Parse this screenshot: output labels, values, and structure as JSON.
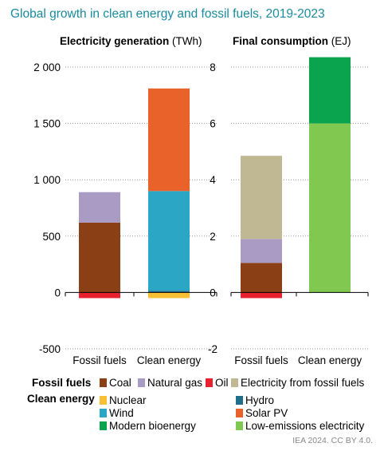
{
  "title": "Global growth in clean energy and fossil fuels, 2019-2023",
  "credit": "IEA 2024. CC BY 4.0.",
  "colors": {
    "Coal": "#8b3f14",
    "Natural gas": "#a99bc3",
    "Oil": "#e8212e",
    "Electricity from fossil fuels": "#c0b893",
    "Nuclear": "#fbbf36",
    "Hydro": "#1f6f88",
    "Wind": "#2ba6c4",
    "Solar PV": "#e8622a",
    "Modern bioenergy": "#0aa44e",
    "Low-emissions electricity": "#80c850",
    "title": "#1a8b9d"
  },
  "legend": {
    "fossil_heading": "Fossil fuels",
    "clean_heading": "Clean energy",
    "fossil_items": [
      "Coal",
      "Natural gas",
      "Oil",
      "Electricity from fossil fuels"
    ],
    "clean_items": [
      "Nuclear",
      "Hydro",
      "Wind",
      "Solar PV",
      "Modern bioenergy",
      "Low-emissions electricity"
    ]
  },
  "chart_data": [
    {
      "type": "bar",
      "stacked": true,
      "title": "Electricity generation",
      "unit": "(TWh)",
      "categories": [
        "Fossil fuels",
        "Clean energy"
      ],
      "ylim": [
        -500,
        2000
      ],
      "yticks": [
        -500,
        0,
        500,
        1000,
        1500,
        2000
      ],
      "ytick_labels": [
        "-500",
        "0",
        "500",
        "1 000",
        "1 500",
        "2 000"
      ],
      "grid": true,
      "series": [
        {
          "name": "Coal",
          "values": [
            620,
            0
          ]
        },
        {
          "name": "Natural gas",
          "values": [
            270,
            0
          ]
        },
        {
          "name": "Oil",
          "values": [
            -50,
            0
          ]
        },
        {
          "name": "Nuclear",
          "values": [
            0,
            -50
          ]
        },
        {
          "name": "Hydro",
          "values": [
            0,
            15
          ]
        },
        {
          "name": "Wind",
          "values": [
            0,
            885
          ]
        },
        {
          "name": "Solar PV",
          "values": [
            0,
            910
          ]
        }
      ]
    },
    {
      "type": "bar",
      "stacked": true,
      "title": "Final consumption",
      "unit": "(EJ)",
      "categories": [
        "Fossil fuels",
        "Clean energy"
      ],
      "ylim": [
        -2,
        8.5
      ],
      "yticks": [
        -2,
        0,
        2,
        4,
        6,
        8
      ],
      "ytick_labels": [
        "-2",
        "0",
        "2",
        "4",
        "6",
        "8"
      ],
      "grid": true,
      "series": [
        {
          "name": "Coal",
          "values": [
            1.05,
            0
          ]
        },
        {
          "name": "Natural gas",
          "values": [
            0.85,
            0
          ]
        },
        {
          "name": "Oil",
          "values": [
            -0.2,
            0
          ]
        },
        {
          "name": "Electricity from fossil fuels",
          "values": [
            2.95,
            0
          ]
        },
        {
          "name": "Low-emissions electricity",
          "values": [
            0,
            6.0
          ]
        },
        {
          "name": "Modern bioenergy",
          "values": [
            0,
            2.35
          ]
        }
      ]
    }
  ]
}
